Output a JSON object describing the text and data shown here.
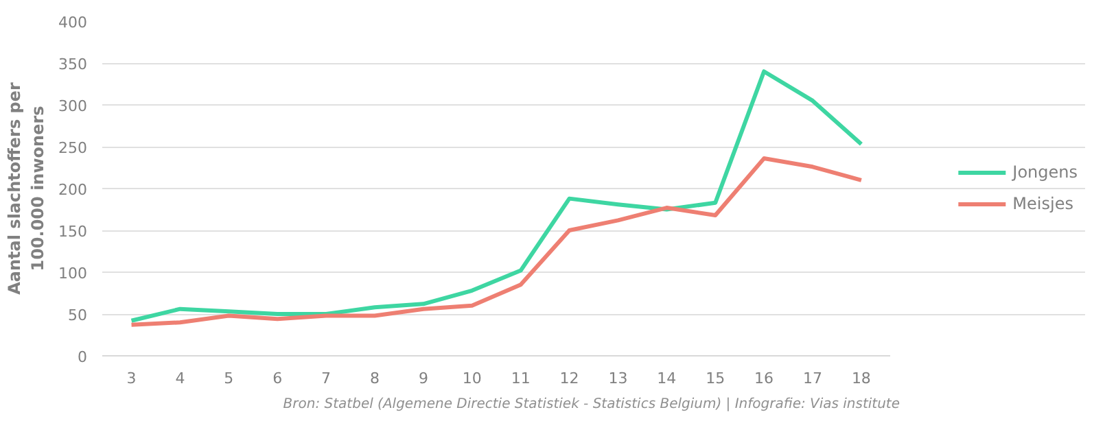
{
  "chart_data": {
    "type": "line",
    "ylabel": "Aantal slachtoffers per\n100.000 inwoners",
    "categories": [
      "3",
      "4",
      "5",
      "6",
      "7",
      "8",
      "9",
      "10",
      "11",
      "12",
      "13",
      "14",
      "15",
      "16",
      "17",
      "18"
    ],
    "series": [
      {
        "name": "Jongens",
        "color": "#3ed6a2",
        "values": [
          42,
          56,
          53,
          50,
          50,
          58,
          62,
          78,
          102,
          188,
          181,
          175,
          183,
          340,
          305,
          253
        ]
      },
      {
        "name": "Meisjes",
        "color": "#ee7f72",
        "values": [
          37,
          40,
          48,
          44,
          48,
          48,
          56,
          60,
          85,
          150,
          162,
          177,
          168,
          236,
          226,
          210
        ]
      }
    ],
    "ylim": [
      0,
      400
    ],
    "yticks": [
      0,
      50,
      100,
      150,
      200,
      250,
      300,
      350,
      400
    ],
    "grid": "y",
    "legend": "right",
    "marker": "none",
    "line_style": "solid",
    "annotations": [
      "Bron: Statbel (Algemene Directie Statistiek - Statistics Belgium)  | Infografie: Vias institute"
    ]
  }
}
